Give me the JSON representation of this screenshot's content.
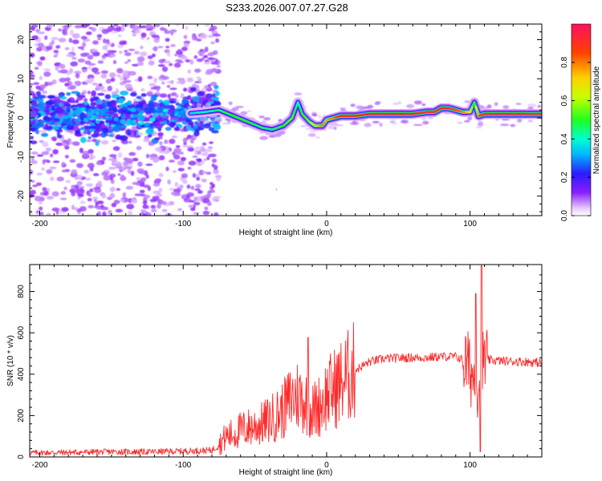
{
  "title": "S233.2026.007.07.27.G28",
  "chart_data": [
    {
      "type": "heatmap",
      "name": "spectrogram",
      "xlabel": "Height of straight line (km)",
      "ylabel": "Frequency (Hz)",
      "xlim": [
        -207,
        150
      ],
      "ylim": [
        -25,
        24
      ],
      "xticks": [
        -200,
        -100,
        0,
        100
      ],
      "yticks": [
        -20,
        -10,
        0,
        10,
        20
      ],
      "colorbar": {
        "label": "Normalized spectral amplitude",
        "range": [
          0.0,
          1.0
        ],
        "ticks": [
          "0.0",
          "0.2",
          "0.4",
          "0.6",
          "0.8"
        ],
        "tick_values": [
          0.0,
          0.2,
          0.4,
          0.6,
          0.8
        ]
      },
      "ridge": {
        "x": [
          -205,
          -180,
          -150,
          -120,
          -100,
          -85,
          -75,
          -65,
          -55,
          -45,
          -38,
          -30,
          -24,
          -20,
          -17,
          -12,
          -8,
          -3,
          0,
          5,
          10,
          20,
          30,
          40,
          50,
          60,
          70,
          75,
          80,
          85,
          90,
          95,
          100,
          103,
          106,
          110,
          120,
          130,
          140,
          150
        ],
        "y": [
          0.5,
          1.0,
          0.0,
          0.5,
          1.0,
          1.5,
          2.0,
          0.5,
          -1.0,
          -2.5,
          -3.0,
          -2.0,
          0.0,
          4.0,
          1.0,
          -1.0,
          -2.0,
          -2.0,
          -0.5,
          0.0,
          0.5,
          0.5,
          1.0,
          1.0,
          1.0,
          1.0,
          1.5,
          1.5,
          2.5,
          2.5,
          2.0,
          1.5,
          1.5,
          4.0,
          0.5,
          1.0,
          1.0,
          1.0,
          1.0,
          1.0
        ],
        "amplitude": [
          0.3,
          0.3,
          0.3,
          0.3,
          0.35,
          0.4,
          0.45,
          0.5,
          0.5,
          0.45,
          0.45,
          0.5,
          0.55,
          0.4,
          0.5,
          0.55,
          0.7,
          0.8,
          0.75,
          0.8,
          0.9,
          0.9,
          0.95,
          0.97,
          1.0,
          0.95,
          0.9,
          0.9,
          0.95,
          0.9,
          0.85,
          0.8,
          0.7,
          0.45,
          0.8,
          0.95,
          0.97,
          0.97,
          0.95,
          0.9
        ]
      }
    },
    {
      "type": "line",
      "name": "snr",
      "xlabel": "Height of straight line (km)",
      "ylabel": "SNR (10 * v/v)",
      "xlim": [
        -207,
        150
      ],
      "ylim": [
        0,
        930
      ],
      "xticks": [
        -200,
        -100,
        0,
        100
      ],
      "yticks": [
        0,
        200,
        400,
        600,
        800
      ],
      "color": "#ff2a2a",
      "series": [
        {
          "name": "SNR",
          "x": [
            -207,
            -180,
            -150,
            -120,
            -100,
            -90,
            -80,
            -75,
            -70,
            -65,
            -60,
            -55,
            -50,
            -45,
            -40,
            -35,
            -30,
            -25,
            -20,
            -15,
            -10,
            -5,
            0,
            10,
            20,
            30,
            40,
            50,
            60,
            70,
            80,
            90,
            95,
            100,
            105,
            110,
            120,
            130,
            140,
            150
          ],
          "values": [
            20,
            22,
            25,
            25,
            28,
            30,
            32,
            60,
            100,
            110,
            130,
            140,
            150,
            160,
            180,
            200,
            230,
            280,
            300,
            270,
            220,
            250,
            300,
            360,
            420,
            460,
            475,
            478,
            480,
            480,
            485,
            485,
            470,
            420,
            350,
            470,
            465,
            462,
            460,
            455
          ]
        }
      ],
      "annotations": [
        {
          "label": "spike",
          "x": -13,
          "value": 578
        },
        {
          "label": "spike",
          "x": 104,
          "value": 790
        },
        {
          "label": "spike",
          "x": 108,
          "value": 925
        },
        {
          "label": "dip",
          "x": 107,
          "value": 25
        }
      ]
    }
  ]
}
